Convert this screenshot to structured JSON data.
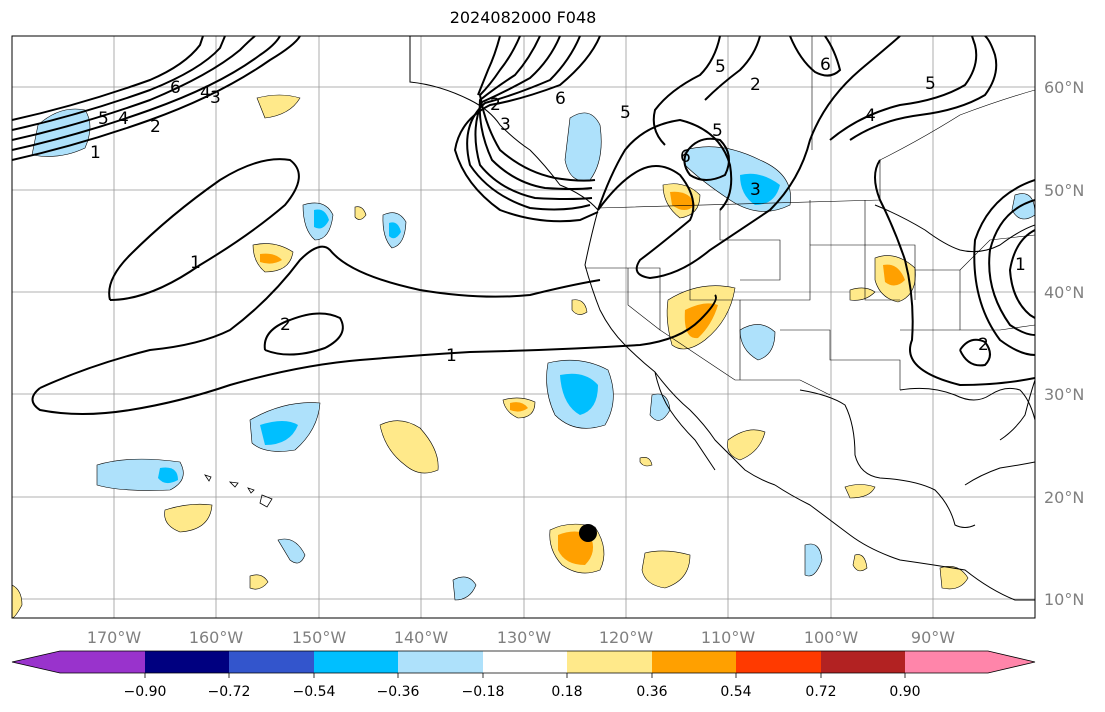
{
  "title": "2024082000 F048",
  "colors": {
    "purple": "#9933cc",
    "navy": "#000080",
    "blue": "#3355cc",
    "cyan": "#00bfff",
    "lightblue": "#aee1fb",
    "white": "#ffffff",
    "yellow": "#ffe98a",
    "orange": "#ffa000",
    "redorange": "#ff3a00",
    "darkred": "#b22222",
    "pink": "#ff85aa"
  },
  "lon_labels": [
    "170°W",
    "160°W",
    "150°W",
    "140°W",
    "130°W",
    "120°W",
    "110°W",
    "100°W",
    "90°W"
  ],
  "lat_labels": [
    "60°N",
    "50°N",
    "40°N",
    "30°N",
    "20°N",
    "10°N"
  ],
  "colorbar": {
    "ticks": [
      "−0.90",
      "−0.72",
      "−0.54",
      "−0.36",
      "−0.18",
      "0.18",
      "0.36",
      "0.54",
      "0.72",
      "0.90"
    ],
    "bins": [
      "#9933cc",
      "#000080",
      "#3355cc",
      "#00bfff",
      "#aee1fb",
      "#ffffff",
      "#ffe98a",
      "#ffa000",
      "#ff3a00",
      "#b22222",
      "#ff85aa"
    ]
  },
  "contour_labels": [
    "1",
    "2",
    "1",
    "1",
    "2",
    "3",
    "4",
    "5",
    "6",
    "2",
    "3",
    "4",
    "5",
    "6",
    "6",
    "5",
    "5",
    "3",
    "2",
    "1",
    "2",
    "6",
    "5",
    "4"
  ],
  "marker": "storm-center-dot"
}
